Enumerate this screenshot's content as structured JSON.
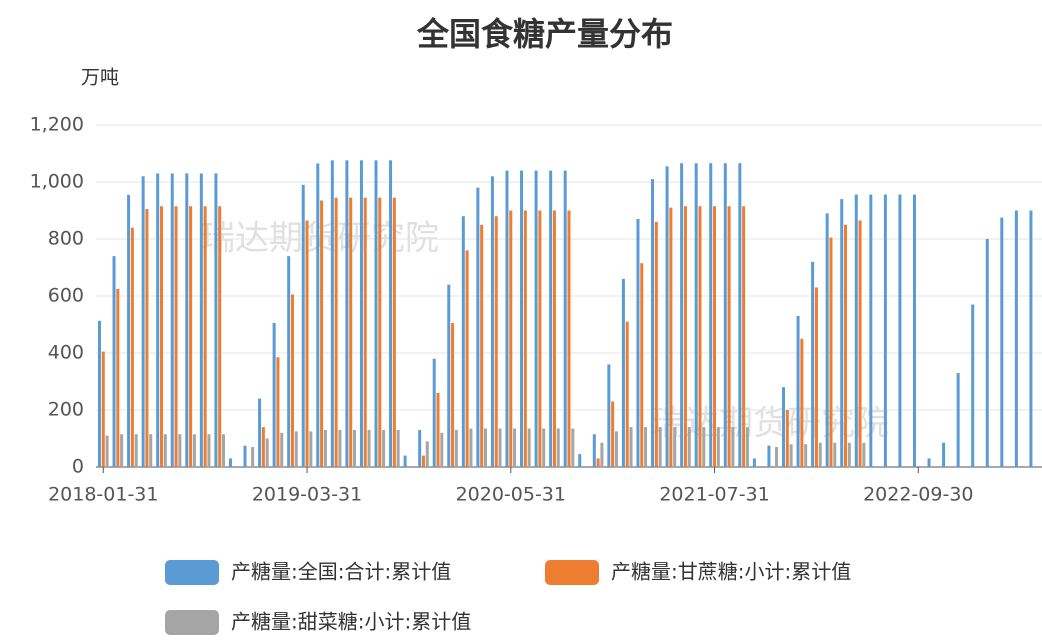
{
  "chart_data": {
    "type": "bar",
    "title": "全国食糖产量分布",
    "y_label": "万吨",
    "watermarks": [
      "瑞达期货研究院",
      "瑞达期货研究院"
    ],
    "categories": [
      "2018-01-31",
      null,
      null,
      null,
      null,
      null,
      null,
      null,
      null,
      null,
      null,
      null,
      null,
      null,
      "2019-03-31",
      null,
      null,
      null,
      null,
      null,
      null,
      null,
      null,
      null,
      null,
      null,
      null,
      null,
      "2020-05-31",
      null,
      null,
      null,
      null,
      null,
      null,
      null,
      null,
      null,
      null,
      null,
      null,
      null,
      "2021-07-31",
      null,
      null,
      null,
      null,
      null,
      null,
      null,
      null,
      null,
      null,
      null,
      null,
      null,
      "2022-09-30",
      null,
      null,
      null,
      null,
      null,
      null,
      null,
      null
    ],
    "series": [
      {
        "name": "产糖量:全国:合计:累计值",
        "color": "#5b9bd5",
        "values": [
          513,
          740,
          955,
          1020,
          1030,
          1030,
          1030,
          1030,
          1030,
          30,
          75,
          240,
          505,
          740,
          990,
          1065,
          1076,
          1076,
          1076,
          1076,
          1076,
          40,
          130,
          380,
          640,
          880,
          980,
          1020,
          1040,
          1040,
          1040,
          1040,
          1040,
          45,
          115,
          360,
          660,
          870,
          1010,
          1055,
          1066,
          1066,
          1066,
          1066,
          1066,
          30,
          75,
          280,
          530,
          720,
          890,
          940,
          956,
          956,
          956,
          956,
          956,
          30,
          85,
          330,
          570,
          800,
          875,
          900,
          900
        ]
      },
      {
        "name": "产糖量:甘蔗糖:小计:累计值",
        "color": "#ed7d31",
        "values": [
          405,
          625,
          840,
          905,
          915,
          915,
          915,
          915,
          915,
          null,
          null,
          140,
          385,
          605,
          865,
          935,
          945,
          945,
          945,
          945,
          945,
          null,
          40,
          260,
          505,
          760,
          850,
          880,
          900,
          900,
          900,
          900,
          900,
          null,
          30,
          230,
          510,
          715,
          860,
          910,
          915,
          915,
          915,
          915,
          915,
          null,
          null,
          200,
          450,
          630,
          805,
          850,
          865,
          null,
          null,
          null,
          null,
          null,
          null,
          null,
          null,
          null,
          null,
          null,
          null
        ]
      },
      {
        "name": "产糖量:甜菜糖:小计:累计值",
        "color": "#a5a5a5",
        "values": [
          110,
          115,
          115,
          115,
          115,
          115,
          115,
          115,
          115,
          null,
          70,
          100,
          120,
          125,
          125,
          130,
          130,
          130,
          130,
          130,
          130,
          null,
          90,
          120,
          130,
          135,
          135,
          135,
          135,
          135,
          135,
          135,
          135,
          null,
          85,
          125,
          140,
          140,
          140,
          140,
          140,
          140,
          140,
          140,
          140,
          null,
          70,
          80,
          80,
          85,
          85,
          85,
          85,
          null,
          null,
          null,
          null,
          null,
          null,
          null,
          null,
          null,
          null,
          null,
          null
        ]
      }
    ],
    "ylim": [
      0,
      1200
    ],
    "yticks": [
      0,
      200,
      400,
      600,
      800,
      {
        "value": 1000,
        "label": "1,000"
      },
      {
        "value": 1200,
        "label": "1,200"
      }
    ],
    "grid": true
  }
}
